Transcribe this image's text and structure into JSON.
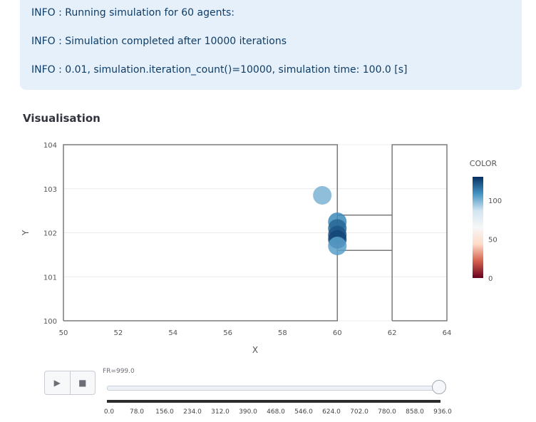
{
  "info": {
    "lines": [
      "INFO : Running simulation for 60 agents:",
      "INFO : Simulation completed after 10000 iterations",
      "INFO : 0.01, simulation.iteration_count()=10000, simulation time: 100.0 [s]"
    ]
  },
  "section_title": "Visualisation",
  "chart_data": {
    "type": "scatter",
    "xlabel": "X",
    "ylabel": "Y",
    "xlim": [
      50,
      64
    ],
    "ylim": [
      100,
      104
    ],
    "x_ticks": [
      "50",
      "52",
      "54",
      "56",
      "58",
      "60",
      "62",
      "64"
    ],
    "y_ticks": [
      "100",
      "101",
      "102",
      "103",
      "104"
    ],
    "geometry_segments": [
      {
        "x": [
          50,
          60,
          60,
          50,
          50
        ],
        "y": [
          100,
          100,
          104,
          104,
          100
        ]
      },
      {
        "x": [
          62,
          64,
          64,
          62,
          62
        ],
        "y": [
          100,
          100,
          104,
          104,
          100
        ]
      },
      {
        "x": [
          60,
          62
        ],
        "y": [
          102.4,
          102.4
        ]
      },
      {
        "x": [
          60,
          62
        ],
        "y": [
          101.6,
          101.6
        ]
      }
    ],
    "points": [
      {
        "x": 59.45,
        "y": 102.85,
        "color": 100
      },
      {
        "x": 60.0,
        "y": 102.25,
        "color": 110
      },
      {
        "x": 60.0,
        "y": 102.1,
        "color": 118
      },
      {
        "x": 60.0,
        "y": 101.95,
        "color": 122
      },
      {
        "x": 60.0,
        "y": 101.85,
        "color": 125
      },
      {
        "x": 60.0,
        "y": 101.7,
        "color": 105
      }
    ],
    "colorbar": {
      "title": "COLOR",
      "min": 0,
      "max": 130,
      "ticks": [
        "100",
        "50",
        "0"
      ],
      "tick_values": [
        100,
        50,
        0
      ],
      "colors": [
        "#67001f",
        "#d6604d",
        "#fddbc7",
        "#f7f7f7",
        "#d1e5f0",
        "#4393c3",
        "#053061"
      ]
    }
  },
  "player": {
    "play_icon": "play-icon",
    "stop_icon": "stop-icon",
    "play_glyph": "▶",
    "stop_glyph": "■"
  },
  "frame_label": "FR=999.0",
  "slider": {
    "value_fraction": 1.0,
    "ticks": [
      "0.0",
      "78.0",
      "156.0",
      "234.0",
      "312.0",
      "390.0",
      "468.0",
      "546.0",
      "624.0",
      "702.0",
      "780.0",
      "858.0",
      "936.0"
    ]
  }
}
